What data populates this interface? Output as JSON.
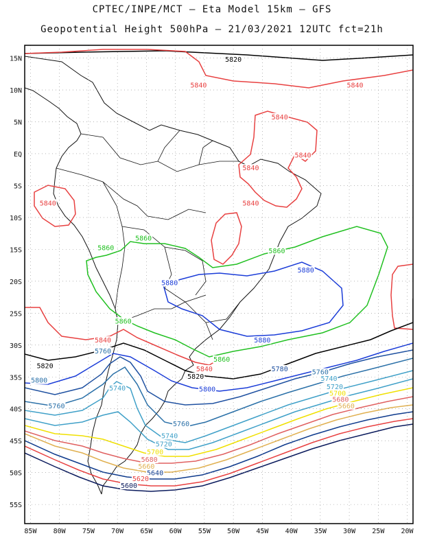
{
  "title_line1": "CPTEC/INPE/MCT –  Eta Model 15km – GFS",
  "title_line2": "Geopotential Height 500hPa – 21/03/2021 12UTC fct=21h",
  "map": {
    "lon_range": [
      -86,
      -19
    ],
    "lat_range": [
      -58,
      17
    ],
    "lat_ticks": [
      "15N",
      "10N",
      "5N",
      "EQ",
      "5S",
      "10S",
      "15S",
      "20S",
      "25S",
      "30S",
      "35S",
      "40S",
      "45S",
      "50S",
      "55S"
    ],
    "lon_ticks": [
      "85W",
      "80W",
      "75W",
      "70W",
      "65W",
      "60W",
      "55W",
      "50W",
      "45W",
      "40W",
      "35W",
      "30W",
      "25W",
      "20W"
    ],
    "grid": true
  },
  "contour_colors": {
    "5620": "#0a1a5c",
    "5640": "#0e3a8c",
    "5660": "#a01010",
    "5680": "#e06060",
    "5700": "#e0b050",
    "5720": "#f0e000",
    "5740": "#3fa0c8",
    "5760": "#2a70a8",
    "5780": "#1e50a0",
    "5800": "#1a3cd8",
    "5820": "#000000",
    "5840": "#e84040",
    "5860": "#20c020",
    "5880": "#1a3cd8"
  },
  "contour_labels": [
    {
      "text": "5820",
      "lon": -50,
      "lat": 14.5,
      "color": "#000000"
    },
    {
      "text": "5840",
      "lon": -56,
      "lat": 10.5,
      "color": "#e84040"
    },
    {
      "text": "5840",
      "lon": -29,
      "lat": 10.5,
      "color": "#e84040"
    },
    {
      "text": "5840",
      "lon": -42,
      "lat": 5.5,
      "color": "#e84040"
    },
    {
      "text": "5840",
      "lon": -38,
      "lat": -0.5,
      "color": "#e84040"
    },
    {
      "text": "5840",
      "lon": -47,
      "lat": -2.5,
      "color": "#e84040"
    },
    {
      "text": "5840",
      "lon": -82,
      "lat": -8,
      "color": "#e84040"
    },
    {
      "text": "5840",
      "lon": -47,
      "lat": -8,
      "color": "#e84040"
    },
    {
      "text": "5860",
      "lon": -72,
      "lat": -15,
      "color": "#20c020"
    },
    {
      "text": "5860",
      "lon": -65.5,
      "lat": -13.5,
      "color": "#20c020"
    },
    {
      "text": "5860",
      "lon": -42.5,
      "lat": -15.5,
      "color": "#20c020"
    },
    {
      "text": "5880",
      "lon": -37.5,
      "lat": -18.5,
      "color": "#1a3cd8"
    },
    {
      "text": "5880",
      "lon": -61,
      "lat": -20.5,
      "color": "#1a3cd8"
    },
    {
      "text": "5860",
      "lon": -69,
      "lat": -26.5,
      "color": "#20c020"
    },
    {
      "text": "5840",
      "lon": -72.5,
      "lat": -29.5,
      "color": "#e84040"
    },
    {
      "text": "5880",
      "lon": -45,
      "lat": -29.5,
      "color": "#1a3cd8"
    },
    {
      "text": "5860",
      "lon": -52,
      "lat": -32.5,
      "color": "#20c020"
    },
    {
      "text": "5820",
      "lon": -82.5,
      "lat": -33.5,
      "color": "#000000"
    },
    {
      "text": "5760",
      "lon": -72.5,
      "lat": -31.2,
      "color": "#2a70a8"
    },
    {
      "text": "5840",
      "lon": -55,
      "lat": -34,
      "color": "#e84040"
    },
    {
      "text": "5820",
      "lon": -56.5,
      "lat": -35.2,
      "color": "#000000"
    },
    {
      "text": "5780",
      "lon": -42,
      "lat": -34,
      "color": "#1e50a0"
    },
    {
      "text": "5760",
      "lon": -35,
      "lat": -34.5,
      "color": "#2a70a8"
    },
    {
      "text": "5740",
      "lon": -33.5,
      "lat": -35.5,
      "color": "#3fa0c8"
    },
    {
      "text": "5800",
      "lon": -83.5,
      "lat": -35.8,
      "color": "#2a70a8"
    },
    {
      "text": "5740",
      "lon": -70,
      "lat": -37,
      "color": "#3fa0c8"
    },
    {
      "text": "5800",
      "lon": -54.5,
      "lat": -37.2,
      "color": "#1a3cd8"
    },
    {
      "text": "5720",
      "lon": -32.5,
      "lat": -36.8,
      "color": "#3fa0c8"
    },
    {
      "text": "5700",
      "lon": -32,
      "lat": -37.8,
      "color": "#f0e000"
    },
    {
      "text": "5680",
      "lon": -31.5,
      "lat": -38.8,
      "color": "#e06060"
    },
    {
      "text": "5660",
      "lon": -30.5,
      "lat": -39.8,
      "color": "#e0b050"
    },
    {
      "text": "5760",
      "lon": -80.5,
      "lat": -39.8,
      "color": "#2a70a8"
    },
    {
      "text": "5760",
      "lon": -59,
      "lat": -42.6,
      "color": "#2a70a8"
    },
    {
      "text": "5740",
      "lon": -61,
      "lat": -44.5,
      "color": "#3fa0c8"
    },
    {
      "text": "5720",
      "lon": -62,
      "lat": -45.8,
      "color": "#3fa0c8"
    },
    {
      "text": "5700",
      "lon": -63.5,
      "lat": -47,
      "color": "#f0e000"
    },
    {
      "text": "5680",
      "lon": -64.5,
      "lat": -48.2,
      "color": "#e06060"
    },
    {
      "text": "5660",
      "lon": -65,
      "lat": -49.3,
      "color": "#e0b050"
    },
    {
      "text": "5640",
      "lon": -63.5,
      "lat": -50.3,
      "color": "#0e3a8c"
    },
    {
      "text": "5620",
      "lon": -66,
      "lat": -51.2,
      "color": "#e84040"
    },
    {
      "text": "5600",
      "lon": -68,
      "lat": -52.3,
      "color": "#0a1a5c"
    }
  ]
}
